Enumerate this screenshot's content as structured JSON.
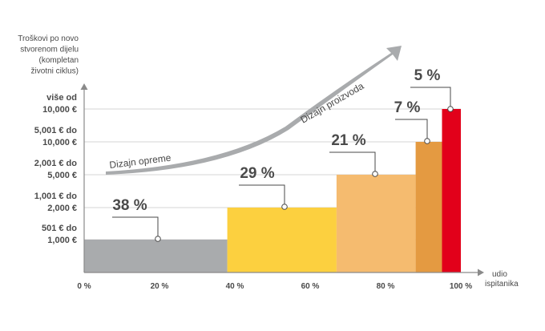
{
  "chart_data": {
    "type": "bar",
    "ylabel": [
      "Troškovi po novo",
      "stvorenom dijelu",
      "(kompletan",
      "životni ciklus)"
    ],
    "xlabel": [
      "udio",
      "ispitanika"
    ],
    "xlim": [
      0,
      100
    ],
    "x_ticks": [
      "0 %",
      "20 %",
      "40 %",
      "60 %",
      "80 %",
      "100 %"
    ],
    "y_categories": [
      {
        "level": 1,
        "label": [
          "501 € do",
          "1,000 €"
        ]
      },
      {
        "level": 2,
        "label": [
          "1,001 € do",
          "2,000 €"
        ]
      },
      {
        "level": 3,
        "label": [
          "2,001 € do",
          "5,000 €"
        ]
      },
      {
        "level": 4,
        "label": [
          "5,001 € do",
          "10,000 €"
        ]
      },
      {
        "level": 5,
        "label": [
          "više od",
          "10,000 €"
        ]
      }
    ],
    "bars": [
      {
        "label": "38 %",
        "share": 38,
        "x_start": 0,
        "x_end": 38,
        "level": 1,
        "color": "#a9abad"
      },
      {
        "label": "29 %",
        "share": 29,
        "x_start": 38,
        "x_end": 67,
        "level": 2,
        "color": "#fcd03f"
      },
      {
        "label": "21 %",
        "share": 21,
        "x_start": 67,
        "x_end": 88,
        "level": 3,
        "color": "#f5bb6f"
      },
      {
        "label": "7 %",
        "share": 7,
        "x_start": 88,
        "x_end": 95,
        "level": 4,
        "color": "#e49a41"
      },
      {
        "label": "5 %",
        "share": 5,
        "x_start": 95,
        "x_end": 100,
        "level": 5,
        "color": "#e2001a"
      }
    ],
    "annotations": [
      {
        "text": "Dizajn opreme"
      },
      {
        "text": "Dizajn proizvoda"
      }
    ],
    "grid": true
  }
}
